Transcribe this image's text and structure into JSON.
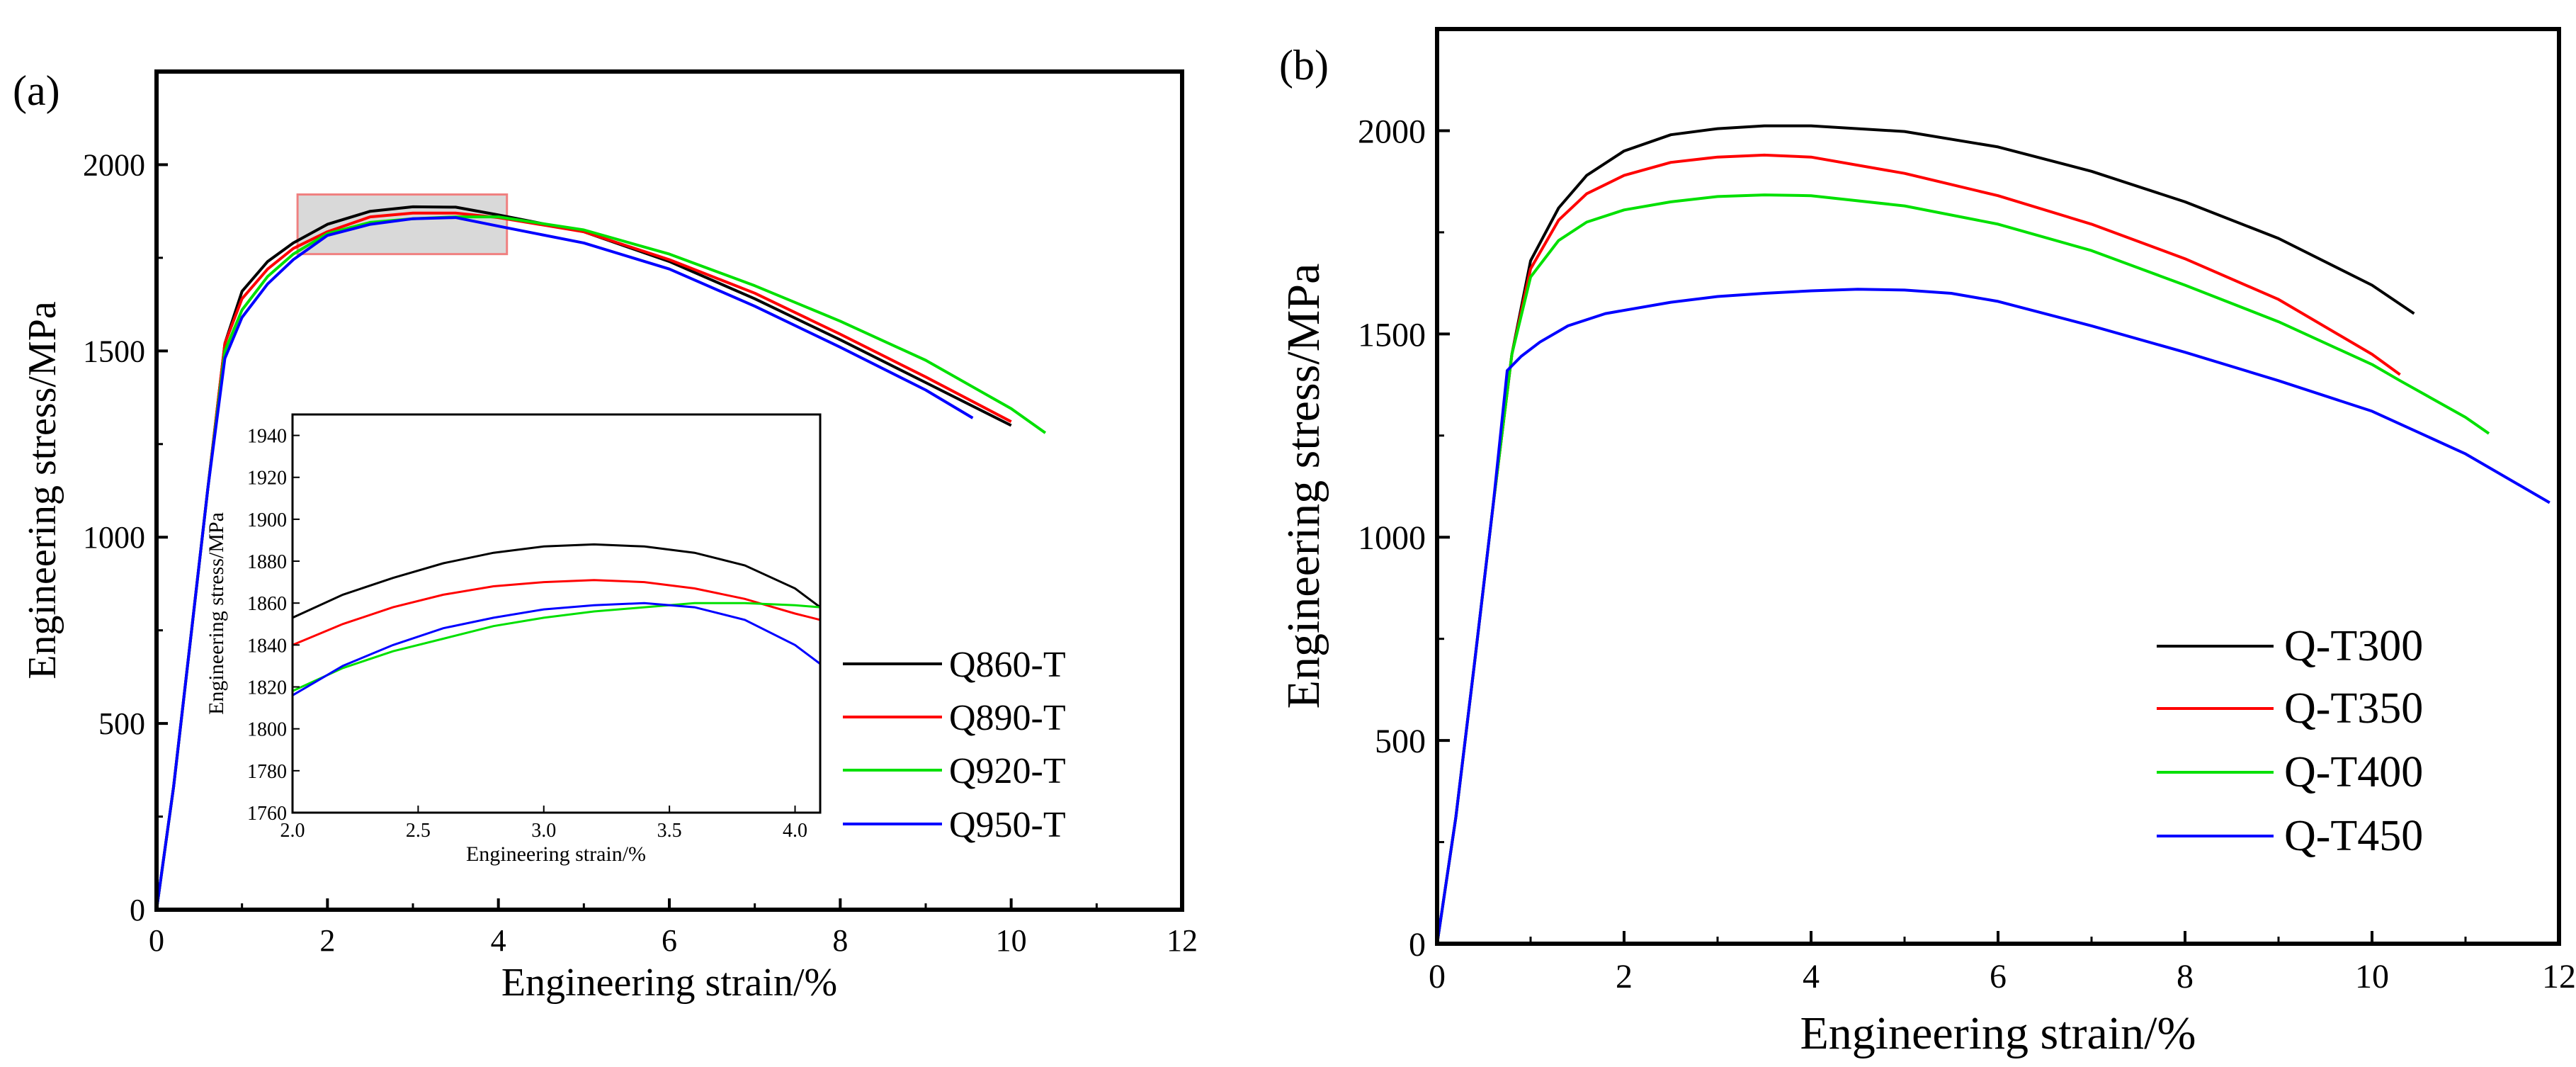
{
  "chart_data": [
    {
      "type": "line",
      "panel_label": "(a)",
      "xlabel": "Engineering strain/%",
      "ylabel": "Engineering stress/MPa",
      "xlim": [
        0,
        12
      ],
      "ylim": [
        0,
        2250
      ],
      "xticks": [
        0,
        2,
        4,
        6,
        8,
        10,
        12
      ],
      "yticks": [
        0,
        500,
        1000,
        1500,
        2000
      ],
      "legend_position": "right",
      "highlight_box": {
        "x": [
          1.65,
          4.1
        ],
        "y": [
          1760,
          1920
        ]
      },
      "series": [
        {
          "name": "Q860-T",
          "color": "#000000",
          "points": [
            [
              0,
              0
            ],
            [
              0.2,
              330
            ],
            [
              0.4,
              730
            ],
            [
              0.6,
              1130
            ],
            [
              0.8,
              1520
            ],
            [
              1.0,
              1660
            ],
            [
              1.3,
              1740
            ],
            [
              1.6,
              1790
            ],
            [
              2.0,
              1840
            ],
            [
              2.5,
              1875
            ],
            [
              3.0,
              1887
            ],
            [
              3.5,
              1886
            ],
            [
              4.0,
              1865
            ],
            [
              5.0,
              1820
            ],
            [
              6.0,
              1740
            ],
            [
              7.0,
              1640
            ],
            [
              8.0,
              1530
            ],
            [
              9.0,
              1415
            ],
            [
              10.0,
              1300
            ]
          ]
        },
        {
          "name": "Q890-T",
          "color": "#ff0000",
          "points": [
            [
              0,
              0
            ],
            [
              0.2,
              330
            ],
            [
              0.4,
              730
            ],
            [
              0.6,
              1130
            ],
            [
              0.8,
              1520
            ],
            [
              1.0,
              1640
            ],
            [
              1.3,
              1720
            ],
            [
              1.6,
              1775
            ],
            [
              2.0,
              1820
            ],
            [
              2.5,
              1860
            ],
            [
              3.0,
              1870
            ],
            [
              3.5,
              1870
            ],
            [
              4.0,
              1858
            ],
            [
              5.0,
              1820
            ],
            [
              6.0,
              1745
            ],
            [
              7.0,
              1655
            ],
            [
              8.0,
              1545
            ],
            [
              9.0,
              1430
            ],
            [
              10.0,
              1310
            ]
          ]
        },
        {
          "name": "Q920-T",
          "color": "#00e000",
          "points": [
            [
              0,
              0
            ],
            [
              0.2,
              330
            ],
            [
              0.4,
              730
            ],
            [
              0.6,
              1130
            ],
            [
              0.8,
              1500
            ],
            [
              1.0,
              1610
            ],
            [
              1.3,
              1700
            ],
            [
              1.6,
              1760
            ],
            [
              2.0,
              1815
            ],
            [
              2.5,
              1845
            ],
            [
              3.0,
              1855
            ],
            [
              3.5,
              1860
            ],
            [
              4.0,
              1860
            ],
            [
              5.0,
              1825
            ],
            [
              6.0,
              1760
            ],
            [
              7.0,
              1675
            ],
            [
              8.0,
              1580
            ],
            [
              9.0,
              1475
            ],
            [
              10.0,
              1345
            ],
            [
              10.4,
              1280
            ]
          ]
        },
        {
          "name": "Q950-T",
          "color": "#0000ff",
          "points": [
            [
              0,
              0
            ],
            [
              0.2,
              330
            ],
            [
              0.4,
              730
            ],
            [
              0.6,
              1130
            ],
            [
              0.8,
              1480
            ],
            [
              1.0,
              1590
            ],
            [
              1.3,
              1680
            ],
            [
              1.6,
              1745
            ],
            [
              2.0,
              1810
            ],
            [
              2.5,
              1840
            ],
            [
              3.0,
              1855
            ],
            [
              3.5,
              1858
            ],
            [
              4.0,
              1835
            ],
            [
              5.0,
              1790
            ],
            [
              6.0,
              1720
            ],
            [
              7.0,
              1620
            ],
            [
              8.0,
              1510
            ],
            [
              9.0,
              1395
            ],
            [
              9.55,
              1320
            ]
          ]
        }
      ],
      "inset": {
        "xlabel": "Engineering strain/%",
        "ylabel": "Engineering stress/MPa",
        "xlim": [
          2.0,
          4.1
        ],
        "ylim": [
          1760,
          1950
        ],
        "xticks": [
          "2.0",
          "2.5",
          "3.0",
          "3.5",
          "4.0"
        ],
        "yticks": [
          "1760",
          "1780",
          "1800",
          "1820",
          "1840",
          "1860",
          "1880",
          "1900",
          "1920",
          "1940"
        ],
        "series": [
          {
            "name": "Q860-T",
            "color": "#000000",
            "points": [
              [
                2.0,
                1853
              ],
              [
                2.2,
                1864
              ],
              [
                2.4,
                1872
              ],
              [
                2.6,
                1879
              ],
              [
                2.8,
                1884
              ],
              [
                3.0,
                1887
              ],
              [
                3.2,
                1888
              ],
              [
                3.4,
                1887
              ],
              [
                3.6,
                1884
              ],
              [
                3.8,
                1878
              ],
              [
                4.0,
                1867
              ],
              [
                4.1,
                1858
              ]
            ]
          },
          {
            "name": "Q890-T",
            "color": "#ff0000",
            "points": [
              [
                2.0,
                1840
              ],
              [
                2.2,
                1850
              ],
              [
                2.4,
                1858
              ],
              [
                2.6,
                1864
              ],
              [
                2.8,
                1868
              ],
              [
                3.0,
                1870
              ],
              [
                3.2,
                1871
              ],
              [
                3.4,
                1870
              ],
              [
                3.6,
                1867
              ],
              [
                3.8,
                1862
              ],
              [
                4.0,
                1855
              ],
              [
                4.1,
                1852
              ]
            ]
          },
          {
            "name": "Q920-T",
            "color": "#00e000",
            "points": [
              [
                2.0,
                1818
              ],
              [
                2.2,
                1829
              ],
              [
                2.4,
                1837
              ],
              [
                2.6,
                1843
              ],
              [
                2.8,
                1849
              ],
              [
                3.0,
                1853
              ],
              [
                3.2,
                1856
              ],
              [
                3.4,
                1858
              ],
              [
                3.6,
                1860
              ],
              [
                3.8,
                1860
              ],
              [
                4.0,
                1859
              ],
              [
                4.1,
                1858
              ]
            ]
          },
          {
            "name": "Q950-T",
            "color": "#0000ff",
            "points": [
              [
                2.0,
                1816
              ],
              [
                2.2,
                1830
              ],
              [
                2.4,
                1840
              ],
              [
                2.6,
                1848
              ],
              [
                2.8,
                1853
              ],
              [
                3.0,
                1857
              ],
              [
                3.2,
                1859
              ],
              [
                3.4,
                1860
              ],
              [
                3.6,
                1858
              ],
              [
                3.8,
                1852
              ],
              [
                4.0,
                1840
              ],
              [
                4.1,
                1831
              ]
            ]
          }
        ]
      }
    },
    {
      "type": "line",
      "panel_label": "(b)",
      "xlabel": "Engineering strain/%",
      "ylabel": "Engineering stress/MPa",
      "xlim": [
        0,
        12
      ],
      "ylim": [
        0,
        2250
      ],
      "xticks": [
        0,
        2,
        4,
        6,
        8,
        10,
        12
      ],
      "yticks": [
        0,
        500,
        1000,
        1500,
        2000
      ],
      "legend_position": "center-right",
      "series": [
        {
          "name": "Q-T300",
          "color": "#000000",
          "points": [
            [
              0,
              0
            ],
            [
              0.2,
              310
            ],
            [
              0.4,
              690
            ],
            [
              0.6,
              1080
            ],
            [
              0.8,
              1450
            ],
            [
              1.0,
              1680
            ],
            [
              1.3,
              1810
            ],
            [
              1.6,
              1890
            ],
            [
              2.0,
              1950
            ],
            [
              2.5,
              1990
            ],
            [
              3.0,
              2005
            ],
            [
              3.5,
              2012
            ],
            [
              4.0,
              2012
            ],
            [
              5.0,
              1998
            ],
            [
              6.0,
              1960
            ],
            [
              7.0,
              1900
            ],
            [
              8.0,
              1825
            ],
            [
              9.0,
              1735
            ],
            [
              10.0,
              1620
            ],
            [
              10.45,
              1550
            ]
          ]
        },
        {
          "name": "Q-T350",
          "color": "#ff0000",
          "points": [
            [
              0,
              0
            ],
            [
              0.2,
              310
            ],
            [
              0.4,
              690
            ],
            [
              0.6,
              1080
            ],
            [
              0.8,
              1450
            ],
            [
              1.0,
              1660
            ],
            [
              1.3,
              1780
            ],
            [
              1.6,
              1845
            ],
            [
              2.0,
              1890
            ],
            [
              2.5,
              1922
            ],
            [
              3.0,
              1935
            ],
            [
              3.5,
              1940
            ],
            [
              4.0,
              1935
            ],
            [
              5.0,
              1895
            ],
            [
              6.0,
              1840
            ],
            [
              7.0,
              1770
            ],
            [
              8.0,
              1685
            ],
            [
              9.0,
              1585
            ],
            [
              10.0,
              1450
            ],
            [
              10.3,
              1400
            ]
          ]
        },
        {
          "name": "Q-T400",
          "color": "#00e000",
          "points": [
            [
              0,
              0
            ],
            [
              0.2,
              310
            ],
            [
              0.4,
              690
            ],
            [
              0.6,
              1080
            ],
            [
              0.8,
              1450
            ],
            [
              1.0,
              1640
            ],
            [
              1.3,
              1730
            ],
            [
              1.6,
              1775
            ],
            [
              2.0,
              1805
            ],
            [
              2.5,
              1825
            ],
            [
              3.0,
              1838
            ],
            [
              3.5,
              1842
            ],
            [
              4.0,
              1840
            ],
            [
              5.0,
              1815
            ],
            [
              6.0,
              1770
            ],
            [
              7.0,
              1705
            ],
            [
              8.0,
              1620
            ],
            [
              9.0,
              1530
            ],
            [
              10.0,
              1425
            ],
            [
              10.3,
              1385
            ],
            [
              11.0,
              1295
            ],
            [
              11.25,
              1255
            ]
          ]
        },
        {
          "name": "Q-T450",
          "color": "#0000ff",
          "points": [
            [
              0,
              0
            ],
            [
              0.2,
              310
            ],
            [
              0.4,
              690
            ],
            [
              0.6,
              1080
            ],
            [
              0.75,
              1410
            ],
            [
              0.9,
              1445
            ],
            [
              1.1,
              1480
            ],
            [
              1.4,
              1520
            ],
            [
              1.8,
              1550
            ],
            [
              2.5,
              1578
            ],
            [
              3.0,
              1592
            ],
            [
              3.5,
              1600
            ],
            [
              4.0,
              1606
            ],
            [
              4.5,
              1610
            ],
            [
              5.0,
              1608
            ],
            [
              5.5,
              1600
            ],
            [
              6.0,
              1580
            ],
            [
              7.0,
              1520
            ],
            [
              8.0,
              1455
            ],
            [
              9.0,
              1385
            ],
            [
              10.0,
              1310
            ],
            [
              11.0,
              1205
            ],
            [
              11.9,
              1085
            ]
          ]
        }
      ]
    }
  ]
}
